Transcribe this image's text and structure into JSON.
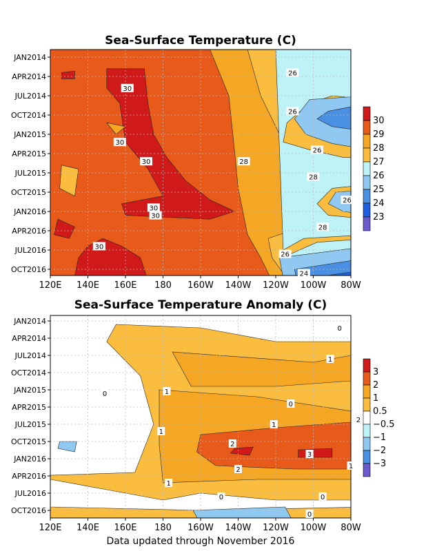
{
  "footer": "Data updated through November 2016",
  "colors": {
    "red": "#d01a1a",
    "darkorange": "#e85a1a",
    "orange": "#f5a623",
    "lightorange": "#fbbd3d",
    "lightcyan": "#bdf3f7",
    "lightblue": "#8fc8f0",
    "blue": "#4a90e2",
    "darkblue": "#1f5fe0",
    "purple": "#6a5acd",
    "white": "#ffffff"
  },
  "chart_data": [
    {
      "type": "heatmap",
      "title": "Sea-Surface Temperature (C)",
      "y_ticks": [
        "JAN2014",
        "APR2014",
        "JUL2014",
        "OCT2014",
        "JAN2015",
        "APR2015",
        "JUL2015",
        "OCT2015",
        "JAN2016",
        "APR2016",
        "JUL2016",
        "OCT2016"
      ],
      "x_ticks": [
        "120E",
        "140E",
        "160E",
        "180",
        "160W",
        "140W",
        "120W",
        "100W",
        "80W"
      ],
      "legend": [
        {
          "label": "30",
          "color": "#d01a1a"
        },
        {
          "label": "29",
          "color": "#e85a1a"
        },
        {
          "label": "28",
          "color": "#f5a623"
        },
        {
          "label": "27",
          "color": "#fbbd3d"
        },
        {
          "label": "26",
          "color": "#bdf3f7"
        },
        {
          "label": "25",
          "color": "#8fc8f0"
        },
        {
          "label": "24",
          "color": "#4a90e2"
        },
        {
          "label": "23",
          "color": "#1f5fe0"
        }
      ],
      "legend_extra_color": "#6a5acd",
      "contour_labels": [
        {
          "text": "30",
          "lon": 161,
          "date": 2014.4
        },
        {
          "text": "26",
          "lon": 249,
          "date": 2014.2
        },
        {
          "text": "26",
          "lon": 249,
          "date": 2014.7
        },
        {
          "text": "30",
          "lon": 157,
          "date": 2015.1
        },
        {
          "text": "30",
          "lon": 171,
          "date": 2015.35
        },
        {
          "text": "28",
          "lon": 223,
          "date": 2015.35
        },
        {
          "text": "26",
          "lon": 262,
          "date": 2015.2
        },
        {
          "text": "28",
          "lon": 260,
          "date": 2015.55
        },
        {
          "text": "30",
          "lon": 175,
          "date": 2015.95
        },
        {
          "text": "30",
          "lon": 176,
          "date": 2016.05
        },
        {
          "text": "26",
          "lon": 278,
          "date": 2015.85
        },
        {
          "text": "28",
          "lon": 265,
          "date": 2016.2
        },
        {
          "text": "30",
          "lon": 146,
          "date": 2016.45
        },
        {
          "text": "26",
          "lon": 245,
          "date": 2016.55
        },
        {
          "text": "24",
          "lon": 255,
          "date": 2016.8
        }
      ]
    },
    {
      "type": "heatmap",
      "title": "Sea-Surface Temperature Anomaly (C)",
      "y_ticks": [
        "JAN2014",
        "APR2014",
        "JUL2014",
        "OCT2014",
        "JAN2015",
        "APR2015",
        "JUL2015",
        "OCT2015",
        "JAN2016",
        "APR2016",
        "JUL2016",
        "OCT2016"
      ],
      "x_ticks": [
        "120E",
        "140E",
        "160E",
        "180",
        "160W",
        "140W",
        "120W",
        "100W",
        "80W"
      ],
      "legend": [
        {
          "label": "3",
          "color": "#d01a1a"
        },
        {
          "label": "2",
          "color": "#e85a1a"
        },
        {
          "label": "1",
          "color": "#f5a623"
        },
        {
          "label": "0.5",
          "color": "#fbbd3d"
        },
        {
          "label": "−0.5",
          "color": "#ffffff"
        },
        {
          "label": "−1",
          "color": "#bdf3f7"
        },
        {
          "label": "−2",
          "color": "#8fc8f0"
        },
        {
          "label": "−3",
          "color": "#4a90e2"
        }
      ],
      "legend_extra_color": "#6a5acd",
      "contour_labels": [
        {
          "text": "0",
          "lon": 274,
          "date": 2014.1
        },
        {
          "text": "1",
          "lon": 269,
          "date": 2014.55
        },
        {
          "text": "0",
          "lon": 149,
          "date": 2015.05
        },
        {
          "text": "1",
          "lon": 182,
          "date": 2015.02
        },
        {
          "text": "0",
          "lon": 248,
          "date": 2015.2
        },
        {
          "text": "1",
          "lon": 179,
          "date": 2015.6
        },
        {
          "text": "1",
          "lon": 239,
          "date": 2015.5
        },
        {
          "text": "2",
          "lon": 284,
          "date": 2015.43
        },
        {
          "text": "2",
          "lon": 217,
          "date": 2015.78
        },
        {
          "text": "3",
          "lon": 258,
          "date": 2015.93
        },
        {
          "text": "1",
          "lon": 280,
          "date": 2016.1
        },
        {
          "text": "2",
          "lon": 220,
          "date": 2016.15
        },
        {
          "text": "1",
          "lon": 183,
          "date": 2016.35
        },
        {
          "text": "0",
          "lon": 211,
          "date": 2016.55
        },
        {
          "text": "0",
          "lon": 265,
          "date": 2016.55
        },
        {
          "text": "0",
          "lon": 258,
          "date": 2016.8
        }
      ]
    }
  ]
}
